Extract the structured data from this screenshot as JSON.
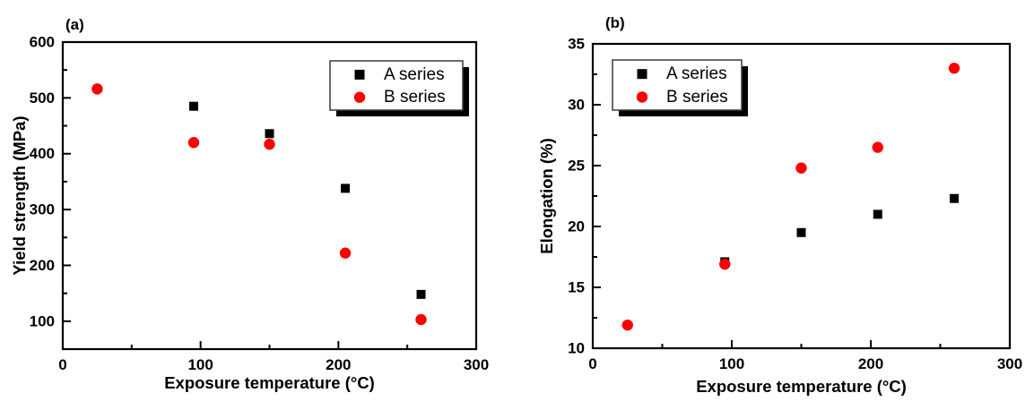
{
  "figure": {
    "background": "#ffffff",
    "frame_color": "#000000"
  },
  "chart_data": [
    {
      "type": "scatter",
      "panel_label": "(a)",
      "title": "",
      "xlabel": "Exposure temperature (°C)",
      "ylabel": "Yield strength (MPa)",
      "xlim": [
        0,
        300
      ],
      "ylim": [
        50,
        600
      ],
      "xticks": [
        0,
        100,
        200,
        300
      ],
      "yticks": [
        100,
        200,
        300,
        400,
        500,
        600
      ],
      "x_minor_step": 50,
      "y_minor_step": 50,
      "grid": false,
      "legend_position": "top-right",
      "legend_entries": [
        "A series",
        "B series"
      ],
      "series": [
        {
          "name": "A series",
          "marker": "square",
          "color": "#000000",
          "points": [
            [
              95,
              485
            ],
            [
              150,
              436
            ],
            [
              205,
              338
            ],
            [
              260,
              148
            ]
          ]
        },
        {
          "name": "B series",
          "marker": "circle",
          "color": "#fe0000",
          "points": [
            [
              25,
              516
            ],
            [
              95,
              420
            ],
            [
              150,
              417
            ],
            [
              205,
              222
            ],
            [
              260,
              103
            ]
          ]
        }
      ]
    },
    {
      "type": "scatter",
      "panel_label": "(b)",
      "title": "",
      "xlabel": "Exposure temperature (°C)",
      "ylabel": "Elongation (%)",
      "xlim": [
        0,
        300
      ],
      "ylim": [
        10,
        35
      ],
      "xticks": [
        0,
        100,
        200,
        300
      ],
      "yticks": [
        10,
        15,
        20,
        25,
        30,
        35
      ],
      "x_minor_step": 50,
      "y_minor_step": 2.5,
      "grid": false,
      "legend_position": "top-left",
      "legend_entries": [
        "A series",
        "B series"
      ],
      "series": [
        {
          "name": "A series",
          "marker": "square",
          "color": "#000000",
          "points": [
            [
              95,
              17.1
            ],
            [
              150,
              19.5
            ],
            [
              205,
              21.0
            ],
            [
              260,
              22.3
            ]
          ]
        },
        {
          "name": "B series",
          "marker": "circle",
          "color": "#fe0000",
          "points": [
            [
              25,
              11.9
            ],
            [
              95,
              16.9
            ],
            [
              150,
              24.8
            ],
            [
              205,
              26.5
            ],
            [
              260,
              33.0
            ]
          ]
        }
      ]
    }
  ]
}
